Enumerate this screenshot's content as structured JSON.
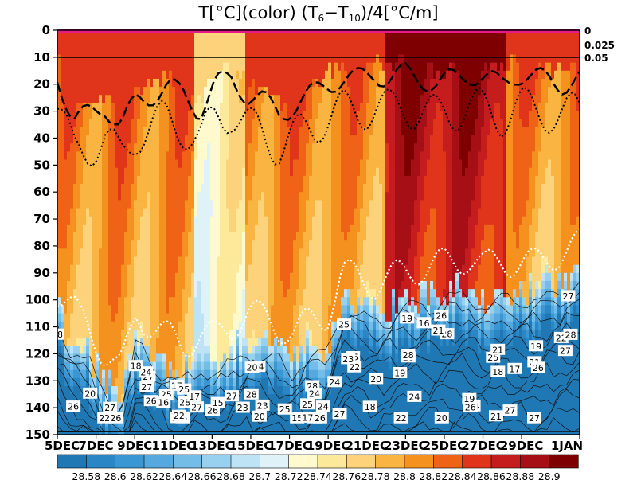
{
  "chart_data": {
    "type": "heatmap",
    "title": "T[°C](color) (T6-T10)/4[°C/m]",
    "title_parts": {
      "prefix": "T[°C](color) (T",
      "sub1": "6",
      "mid": "−T",
      "sub2": "10",
      "suffix": ")/4[°C/m]"
    },
    "x_ticks": [
      "5DEC",
      "7DEC",
      "9DEC",
      "11DEC",
      "13DEC",
      "15DEC",
      "17DEC",
      "19DEC",
      "21DEC",
      "23DEC",
      "25DEC",
      "27DEC",
      "29DEC",
      "1JAN"
    ],
    "x_range_days": [
      5,
      32
    ],
    "y_ticks": [
      "0",
      "10",
      "20",
      "30",
      "40",
      "50",
      "60",
      "70",
      "80",
      "90",
      "100",
      "110",
      "120",
      "130",
      "140",
      "150"
    ],
    "y_range": [
      0,
      150
    ],
    "y_reversed": true,
    "right_axis_ticks": [
      "0",
      "0.025",
      "0.05"
    ],
    "colorbar": {
      "levels": [
        "28.58",
        "28.6",
        "28.62",
        "28.64",
        "28.66",
        "28.68",
        "28.7",
        "28.72",
        "28.74",
        "28.76",
        "28.78",
        "28.8",
        "28.82",
        "28.84",
        "28.86",
        "28.88",
        "28.9"
      ],
      "colors": [
        "#1f78b4",
        "#2b86c5",
        "#3b97d3",
        "#55a9de",
        "#74bde7",
        "#98d0ef",
        "#bde3f5",
        "#dff2f8",
        "#fffacd",
        "#fde99a",
        "#fcd37a",
        "#f9b441",
        "#f5911e",
        "#ef6316",
        "#e0351a",
        "#c51d1e",
        "#a50f15",
        "#7f0000"
      ]
    },
    "thermocline_depth": [
      105,
      112,
      118,
      128,
      135,
      112,
      118,
      122,
      125,
      120,
      122,
      118,
      112,
      115,
      118,
      120,
      116,
      114,
      98,
      100,
      102,
      100,
      98,
      96,
      95,
      94,
      92,
      96,
      93,
      94,
      95,
      92,
      90,
      88
    ],
    "warm_layer_top": [
      10,
      28,
      25,
      22,
      30,
      20,
      18,
      15,
      18,
      24,
      14,
      12,
      18,
      20,
      25,
      22,
      18,
      14,
      12,
      12,
      10,
      12,
      10,
      12,
      14,
      12,
      10,
      12,
      14,
      10,
      12,
      12,
      14,
      12
    ],
    "contour_labels": [
      "28",
      "25",
      "27",
      "24",
      "27",
      "26",
      "25",
      "28",
      "27",
      "26",
      "25",
      "24",
      "21",
      "20",
      "23",
      "22",
      "19",
      "27",
      "26",
      "28",
      "25",
      "24",
      "23",
      "26",
      "27",
      "28",
      "27",
      "21",
      "20",
      "19",
      "28",
      "26",
      "27",
      "22",
      "24",
      "18",
      "28",
      "27",
      "26",
      "25",
      "24",
      "22",
      "23",
      "20",
      "21",
      "18",
      "17",
      "19",
      "15",
      "17",
      "15",
      "16",
      "28",
      "27",
      "26",
      "25",
      "24",
      "22",
      "21",
      "20",
      "19",
      "18",
      "17",
      "16",
      "15",
      "28",
      "27",
      "26",
      "25",
      "24",
      "23",
      "22",
      "21",
      "20",
      "19",
      "17"
    ]
  }
}
